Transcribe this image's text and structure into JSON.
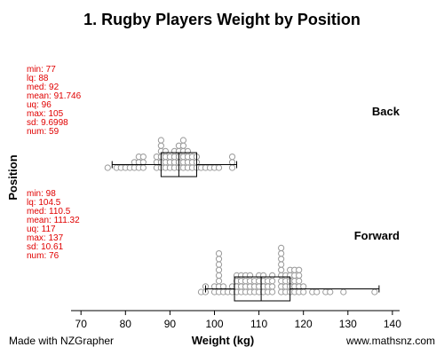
{
  "colors": {
    "stats_text": "#e00000",
    "dots": "#999999",
    "box": "#000000",
    "axis": "#000000"
  },
  "chart_data": {
    "type": "dot-box-plot",
    "title": "1. Rugby Players Weight by Position",
    "xlabel": "Weight (kg)",
    "ylabel": "Position",
    "xlim": [
      68,
      141
    ],
    "xticks": [
      70,
      80,
      90,
      100,
      110,
      120,
      130,
      140
    ],
    "groups": [
      {
        "name": "Back",
        "stats": {
          "min": 77,
          "lq": 88,
          "med": 92,
          "mean": 91.746,
          "uq": 96,
          "max": 105,
          "sd": 9.6998,
          "num": 59
        },
        "stats_lines": [
          "min: 77",
          "lq: 88",
          "med: 92",
          "mean: 91.746",
          "uq: 96",
          "max: 105",
          "sd: 9.6998",
          "num: 59"
        ],
        "dot_stacks": [
          [
            76,
            1
          ],
          [
            78,
            1
          ],
          [
            79,
            1
          ],
          [
            80,
            1
          ],
          [
            81,
            1
          ],
          [
            82,
            2
          ],
          [
            83,
            3
          ],
          [
            84,
            3
          ],
          [
            87,
            3
          ],
          [
            88,
            6
          ],
          [
            89,
            4
          ],
          [
            90,
            3
          ],
          [
            91,
            4
          ],
          [
            92,
            5
          ],
          [
            93,
            6
          ],
          [
            94,
            4
          ],
          [
            95,
            3
          ],
          [
            96,
            3
          ],
          [
            97,
            1
          ],
          [
            98,
            1
          ],
          [
            99,
            1
          ],
          [
            100,
            1
          ],
          [
            101,
            1
          ],
          [
            104,
            3
          ]
        ]
      },
      {
        "name": "Forward",
        "stats": {
          "min": 98,
          "lq": 104.5,
          "med": 110.5,
          "mean": 111.32,
          "uq": 117,
          "max": 137,
          "sd": 10.61,
          "num": 76
        },
        "stats_lines": [
          "min: 98",
          "lq: 104.5",
          "med: 110.5",
          "mean: 111.32",
          "uq: 117",
          "max: 137",
          "sd: 10.61",
          "num: 76"
        ],
        "dot_stacks": [
          [
            97,
            1
          ],
          [
            98,
            2
          ],
          [
            100,
            2
          ],
          [
            101,
            8
          ],
          [
            102,
            2
          ],
          [
            103,
            1
          ],
          [
            104,
            2
          ],
          [
            105,
            4
          ],
          [
            106,
            4
          ],
          [
            107,
            4
          ],
          [
            108,
            4
          ],
          [
            109,
            3
          ],
          [
            110,
            4
          ],
          [
            111,
            4
          ],
          [
            112,
            3
          ],
          [
            113,
            4
          ],
          [
            115,
            9
          ],
          [
            116,
            4
          ],
          [
            117,
            5
          ],
          [
            118,
            5
          ],
          [
            119,
            5
          ],
          [
            120,
            2
          ],
          [
            122,
            1
          ],
          [
            123,
            1
          ],
          [
            125,
            1
          ],
          [
            126,
            1
          ],
          [
            129,
            1
          ],
          [
            136,
            1
          ]
        ]
      }
    ]
  },
  "footer": {
    "left": "Made with NZGrapher",
    "right": "www.mathsnz.com"
  }
}
